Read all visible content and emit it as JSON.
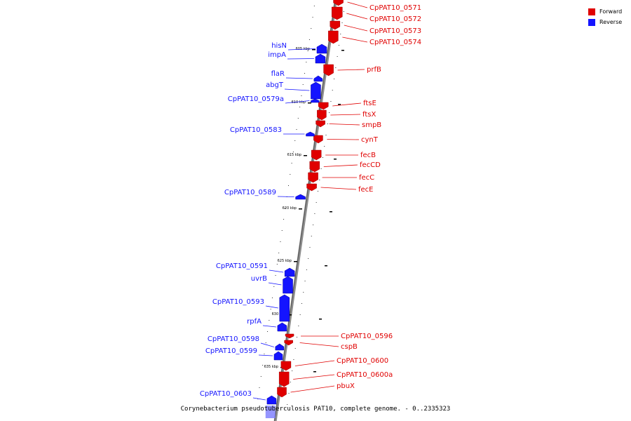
{
  "caption": "Corynebacterium pseudotuberculosis PAT10, complete genome. - 0..2335323",
  "legend": {
    "forward": "Forward",
    "reverse": "Reverse",
    "forward_color": "#e00000",
    "reverse_color": "#1414ff"
  },
  "ticks": [
    "605 kbp",
    "610 kbp",
    "615 kbp",
    "620 kbp",
    "625 kbp",
    "630 kbp",
    "635 kbp"
  ],
  "forward_genes": [
    "CpPAT10_0571",
    "CpPAT10_0572",
    "CpPAT10_0573",
    "CpPAT10_0574",
    "prfB",
    "ftsE",
    "ftsX",
    "smpB",
    "cynT",
    "fecB",
    "fecCD",
    "fecC",
    "fecE",
    "CpPAT10_0596",
    "cspB",
    "CpPAT10_0600",
    "CpPAT10_0600a",
    "pbuX"
  ],
  "reverse_genes": [
    "hisN",
    "impA",
    "flaR",
    "abgT",
    "CpPAT10_0579a",
    "CpPAT10_0583",
    "CpPAT10_0589",
    "CpPAT10_0591",
    "uvrB",
    "CpPAT10_0593",
    "rpfA",
    "CpPAT10_0598",
    "CpPAT10_0599",
    "CpPAT10_0603"
  ]
}
